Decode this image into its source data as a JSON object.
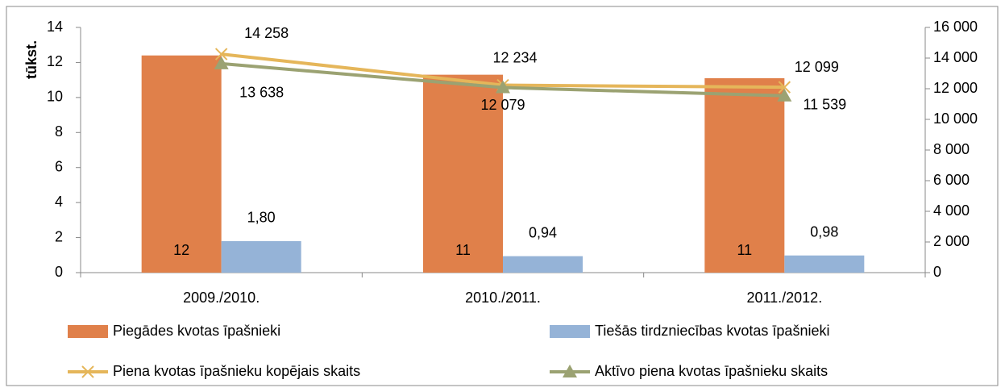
{
  "chart_data": {
    "type": "bar-line",
    "y_axis_label": "tūkst.",
    "categories": [
      "2009./2010.",
      "2010./2011.",
      "2011./2012."
    ],
    "series": [
      {
        "name": "Piegādes kvotas īpašnieki",
        "type": "bar",
        "color": "#e0804a",
        "values": [
          12.4,
          11.3,
          11.1
        ],
        "value_labels": [
          "12",
          "11",
          "11"
        ]
      },
      {
        "name": "Tiešās tirdzniecības kvotas īpašnieki",
        "type": "bar",
        "color": "#95b3d7",
        "values": [
          1.8,
          0.94,
          0.98
        ],
        "value_labels": [
          "1,80",
          "0,94",
          "0,98"
        ]
      },
      {
        "name": "Piena kvotas īpašnieku kopējais skaits",
        "type": "line",
        "marker": "x",
        "axis": "y2",
        "color": "#e5b65a",
        "values": [
          14258,
          12234,
          12099
        ],
        "value_labels": [
          "14 258",
          "12 234",
          "12 099"
        ]
      },
      {
        "name": "Aktīvo piena kvotas īpašnieku skaits",
        "type": "line",
        "marker": "triangle",
        "axis": "y2",
        "color": "#9ba272",
        "values": [
          13638,
          12079,
          11539
        ],
        "value_labels": [
          "13 638",
          "12 079",
          "11 539"
        ]
      }
    ],
    "ylim": [
      0,
      14
    ],
    "yticks": [
      0,
      2,
      4,
      6,
      8,
      10,
      12,
      14
    ],
    "y2lim": [
      0,
      16000
    ],
    "y2ticks": [
      0,
      {
        "value": 2000,
        "label": "2 000"
      },
      {
        "value": 4000,
        "label": "4 000"
      },
      {
        "value": 6000,
        "label": "6 000"
      },
      {
        "value": 8000,
        "label": "8 000"
      },
      {
        "value": 10000,
        "label": "10 000"
      },
      {
        "value": 12000,
        "label": "12 000"
      },
      {
        "value": 14000,
        "label": "14 000"
      },
      {
        "value": 16000,
        "label": "16 000"
      }
    ],
    "grid": false,
    "legend": "bottom"
  }
}
